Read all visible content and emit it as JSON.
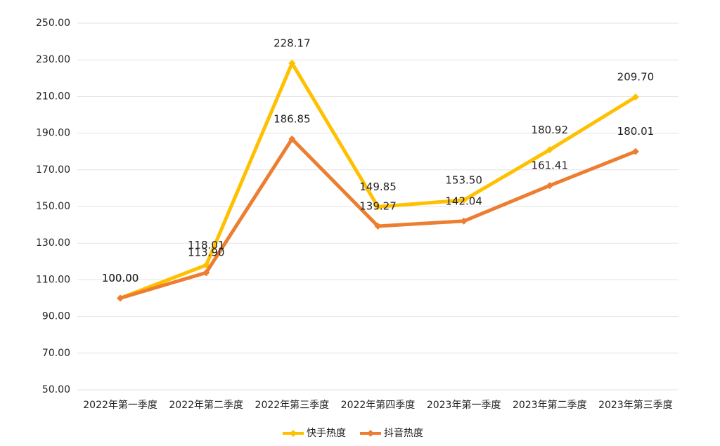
{
  "chart_data": {
    "type": "line",
    "categories": [
      "2022年第一季度",
      "2022年第二季度",
      "2022年第三季度",
      "2022年第四季度",
      "2023年第一季度",
      "2023年第二季度",
      "2023年第三季度"
    ],
    "series": [
      {
        "name": "快手热度",
        "color": "#ffc000",
        "values": [
          100,
          118.01,
          228.17,
          149.85,
          153.5,
          180.92,
          209.7
        ],
        "value_labels": [
          "100.00",
          "118.01",
          "228.17",
          "149.85",
          "153.50",
          "180.92",
          "209.70"
        ]
      },
      {
        "name": "抖音热度",
        "color": "#ed7d31",
        "values": [
          100,
          113.9,
          186.85,
          139.27,
          142.04,
          161.41,
          180.01
        ],
        "value_labels": [
          "100.00",
          "113.90",
          "186.85",
          "139.27",
          "142.04",
          "161.41",
          "180.01"
        ]
      }
    ],
    "ylim": [
      50,
      250
    ],
    "yticks": [
      {
        "value": 50,
        "label": "50.00"
      },
      {
        "value": 70,
        "label": "70.00"
      },
      {
        "value": 90,
        "label": "90.00"
      },
      {
        "value": 110,
        "label": "110.00"
      },
      {
        "value": 130,
        "label": "130.00"
      },
      {
        "value": 150,
        "label": "150.00"
      },
      {
        "value": 170,
        "label": "170.00"
      },
      {
        "value": 190,
        "label": "190.00"
      },
      {
        "value": 210,
        "label": "210.00"
      },
      {
        "value": 230,
        "label": "230.00"
      },
      {
        "value": 250,
        "label": "250.00"
      }
    ],
    "grid": true,
    "legend": "bottom"
  }
}
